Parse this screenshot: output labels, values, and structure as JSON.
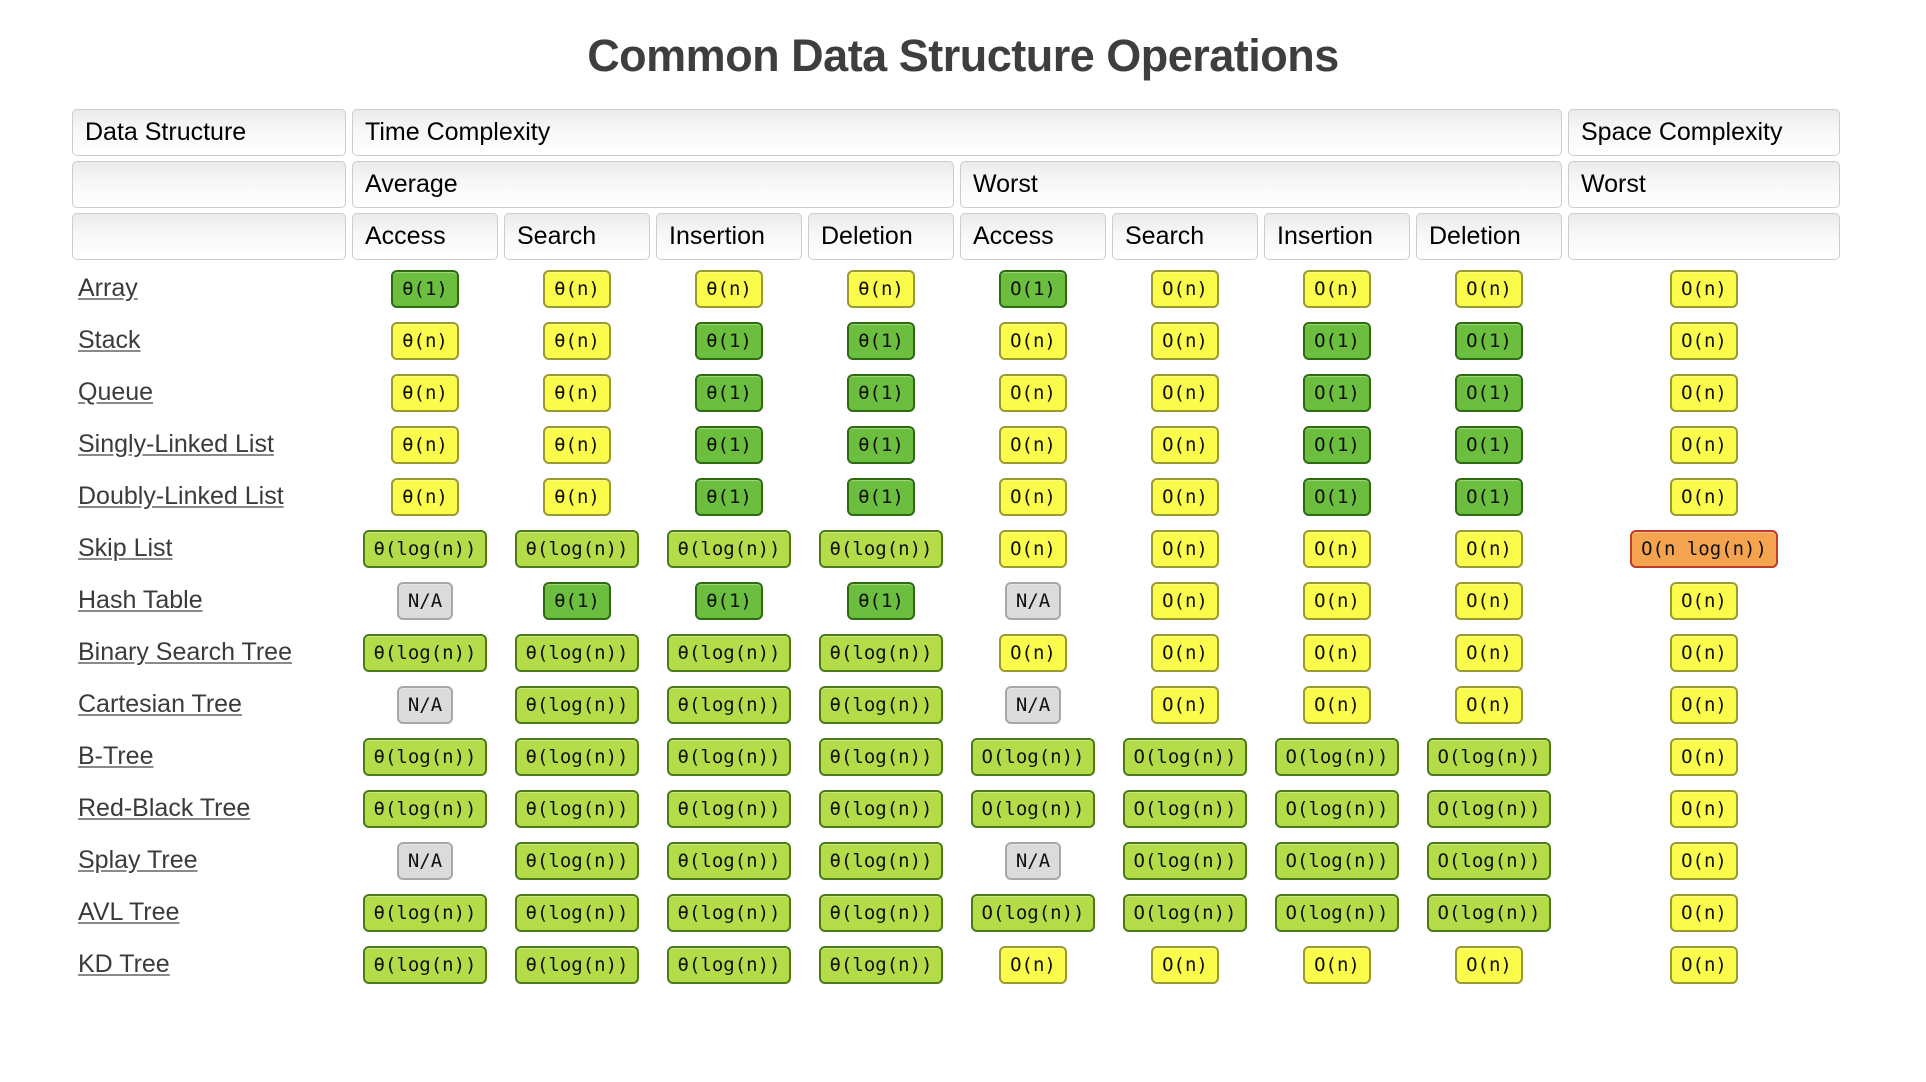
{
  "title": "Common Data Structure Operations",
  "colors": {
    "badges": {
      "green": {
        "bg": "#6cbe3f",
        "border": "#2d6a12"
      },
      "yellowgreen": {
        "bg": "#b4dc48",
        "border": "#4c7a19"
      },
      "yellow": {
        "bg": "#fbfb4b",
        "border": "#9a9a32"
      },
      "orange": {
        "bg": "#f4a44e",
        "border": "#bf3b2a"
      },
      "gray": {
        "bg": "#dbdbdb",
        "border": "#a8a8a8"
      }
    }
  },
  "table": {
    "header": {
      "data_structure": "Data Structure",
      "time_complexity": "Time Complexity",
      "space_complexity": "Space Complexity",
      "average": "Average",
      "worst_time": "Worst",
      "worst_space": "Worst",
      "operations": [
        "Access",
        "Search",
        "Insertion",
        "Deletion",
        "Access",
        "Search",
        "Insertion",
        "Deletion"
      ]
    },
    "rows": [
      {
        "name": "Array",
        "cells": [
          [
            "θ(1)",
            "green"
          ],
          [
            "θ(n)",
            "yellow"
          ],
          [
            "θ(n)",
            "yellow"
          ],
          [
            "θ(n)",
            "yellow"
          ],
          [
            "O(1)",
            "green"
          ],
          [
            "O(n)",
            "yellow"
          ],
          [
            "O(n)",
            "yellow"
          ],
          [
            "O(n)",
            "yellow"
          ],
          [
            "O(n)",
            "yellow"
          ]
        ]
      },
      {
        "name": "Stack",
        "cells": [
          [
            "θ(n)",
            "yellow"
          ],
          [
            "θ(n)",
            "yellow"
          ],
          [
            "θ(1)",
            "green"
          ],
          [
            "θ(1)",
            "green"
          ],
          [
            "O(n)",
            "yellow"
          ],
          [
            "O(n)",
            "yellow"
          ],
          [
            "O(1)",
            "green"
          ],
          [
            "O(1)",
            "green"
          ],
          [
            "O(n)",
            "yellow"
          ]
        ]
      },
      {
        "name": "Queue",
        "cells": [
          [
            "θ(n)",
            "yellow"
          ],
          [
            "θ(n)",
            "yellow"
          ],
          [
            "θ(1)",
            "green"
          ],
          [
            "θ(1)",
            "green"
          ],
          [
            "O(n)",
            "yellow"
          ],
          [
            "O(n)",
            "yellow"
          ],
          [
            "O(1)",
            "green"
          ],
          [
            "O(1)",
            "green"
          ],
          [
            "O(n)",
            "yellow"
          ]
        ]
      },
      {
        "name": "Singly-Linked List",
        "cells": [
          [
            "θ(n)",
            "yellow"
          ],
          [
            "θ(n)",
            "yellow"
          ],
          [
            "θ(1)",
            "green"
          ],
          [
            "θ(1)",
            "green"
          ],
          [
            "O(n)",
            "yellow"
          ],
          [
            "O(n)",
            "yellow"
          ],
          [
            "O(1)",
            "green"
          ],
          [
            "O(1)",
            "green"
          ],
          [
            "O(n)",
            "yellow"
          ]
        ]
      },
      {
        "name": "Doubly-Linked List",
        "cells": [
          [
            "θ(n)",
            "yellow"
          ],
          [
            "θ(n)",
            "yellow"
          ],
          [
            "θ(1)",
            "green"
          ],
          [
            "θ(1)",
            "green"
          ],
          [
            "O(n)",
            "yellow"
          ],
          [
            "O(n)",
            "yellow"
          ],
          [
            "O(1)",
            "green"
          ],
          [
            "O(1)",
            "green"
          ],
          [
            "O(n)",
            "yellow"
          ]
        ]
      },
      {
        "name": "Skip List",
        "cells": [
          [
            "θ(log(n))",
            "yellowgreen"
          ],
          [
            "θ(log(n))",
            "yellowgreen"
          ],
          [
            "θ(log(n))",
            "yellowgreen"
          ],
          [
            "θ(log(n))",
            "yellowgreen"
          ],
          [
            "O(n)",
            "yellow"
          ],
          [
            "O(n)",
            "yellow"
          ],
          [
            "O(n)",
            "yellow"
          ],
          [
            "O(n)",
            "yellow"
          ],
          [
            "O(n log(n))",
            "orange"
          ]
        ]
      },
      {
        "name": "Hash Table",
        "cells": [
          [
            "N/A",
            "gray"
          ],
          [
            "θ(1)",
            "green"
          ],
          [
            "θ(1)",
            "green"
          ],
          [
            "θ(1)",
            "green"
          ],
          [
            "N/A",
            "gray"
          ],
          [
            "O(n)",
            "yellow"
          ],
          [
            "O(n)",
            "yellow"
          ],
          [
            "O(n)",
            "yellow"
          ],
          [
            "O(n)",
            "yellow"
          ]
        ]
      },
      {
        "name": "Binary Search Tree",
        "cells": [
          [
            "θ(log(n))",
            "yellowgreen"
          ],
          [
            "θ(log(n))",
            "yellowgreen"
          ],
          [
            "θ(log(n))",
            "yellowgreen"
          ],
          [
            "θ(log(n))",
            "yellowgreen"
          ],
          [
            "O(n)",
            "yellow"
          ],
          [
            "O(n)",
            "yellow"
          ],
          [
            "O(n)",
            "yellow"
          ],
          [
            "O(n)",
            "yellow"
          ],
          [
            "O(n)",
            "yellow"
          ]
        ]
      },
      {
        "name": "Cartesian Tree",
        "cells": [
          [
            "N/A",
            "gray"
          ],
          [
            "θ(log(n))",
            "yellowgreen"
          ],
          [
            "θ(log(n))",
            "yellowgreen"
          ],
          [
            "θ(log(n))",
            "yellowgreen"
          ],
          [
            "N/A",
            "gray"
          ],
          [
            "O(n)",
            "yellow"
          ],
          [
            "O(n)",
            "yellow"
          ],
          [
            "O(n)",
            "yellow"
          ],
          [
            "O(n)",
            "yellow"
          ]
        ]
      },
      {
        "name": "B-Tree",
        "cells": [
          [
            "θ(log(n))",
            "yellowgreen"
          ],
          [
            "θ(log(n))",
            "yellowgreen"
          ],
          [
            "θ(log(n))",
            "yellowgreen"
          ],
          [
            "θ(log(n))",
            "yellowgreen"
          ],
          [
            "O(log(n))",
            "yellowgreen"
          ],
          [
            "O(log(n))",
            "yellowgreen"
          ],
          [
            "O(log(n))",
            "yellowgreen"
          ],
          [
            "O(log(n))",
            "yellowgreen"
          ],
          [
            "O(n)",
            "yellow"
          ]
        ]
      },
      {
        "name": "Red-Black Tree",
        "cells": [
          [
            "θ(log(n))",
            "yellowgreen"
          ],
          [
            "θ(log(n))",
            "yellowgreen"
          ],
          [
            "θ(log(n))",
            "yellowgreen"
          ],
          [
            "θ(log(n))",
            "yellowgreen"
          ],
          [
            "O(log(n))",
            "yellowgreen"
          ],
          [
            "O(log(n))",
            "yellowgreen"
          ],
          [
            "O(log(n))",
            "yellowgreen"
          ],
          [
            "O(log(n))",
            "yellowgreen"
          ],
          [
            "O(n)",
            "yellow"
          ]
        ]
      },
      {
        "name": "Splay Tree",
        "cells": [
          [
            "N/A",
            "gray"
          ],
          [
            "θ(log(n))",
            "yellowgreen"
          ],
          [
            "θ(log(n))",
            "yellowgreen"
          ],
          [
            "θ(log(n))",
            "yellowgreen"
          ],
          [
            "N/A",
            "gray"
          ],
          [
            "O(log(n))",
            "yellowgreen"
          ],
          [
            "O(log(n))",
            "yellowgreen"
          ],
          [
            "O(log(n))",
            "yellowgreen"
          ],
          [
            "O(n)",
            "yellow"
          ]
        ]
      },
      {
        "name": "AVL Tree",
        "cells": [
          [
            "θ(log(n))",
            "yellowgreen"
          ],
          [
            "θ(log(n))",
            "yellowgreen"
          ],
          [
            "θ(log(n))",
            "yellowgreen"
          ],
          [
            "θ(log(n))",
            "yellowgreen"
          ],
          [
            "O(log(n))",
            "yellowgreen"
          ],
          [
            "O(log(n))",
            "yellowgreen"
          ],
          [
            "O(log(n))",
            "yellowgreen"
          ],
          [
            "O(log(n))",
            "yellowgreen"
          ],
          [
            "O(n)",
            "yellow"
          ]
        ]
      },
      {
        "name": "KD Tree",
        "cells": [
          [
            "θ(log(n))",
            "yellowgreen"
          ],
          [
            "θ(log(n))",
            "yellowgreen"
          ],
          [
            "θ(log(n))",
            "yellowgreen"
          ],
          [
            "θ(log(n))",
            "yellowgreen"
          ],
          [
            "O(n)",
            "yellow"
          ],
          [
            "O(n)",
            "yellow"
          ],
          [
            "O(n)",
            "yellow"
          ],
          [
            "O(n)",
            "yellow"
          ],
          [
            "O(n)",
            "yellow"
          ]
        ]
      }
    ]
  }
}
